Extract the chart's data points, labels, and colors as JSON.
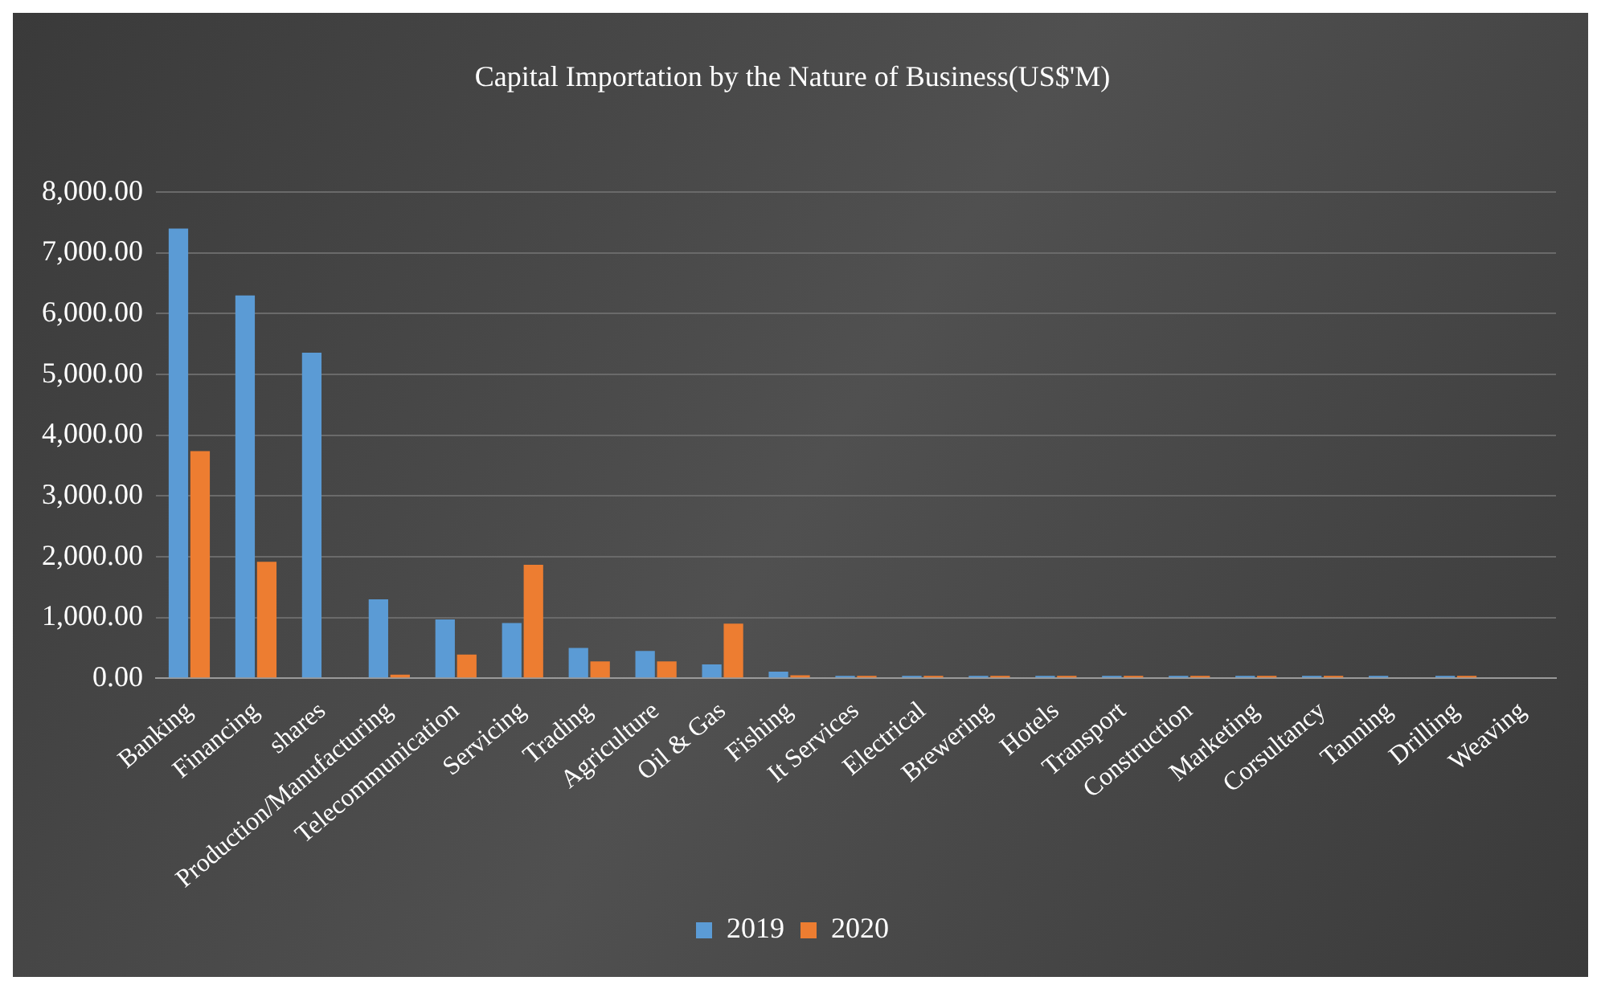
{
  "chart_data": {
    "type": "bar",
    "title": "Capital Importation by the Nature of Business(US$'M)",
    "categories": [
      "Banking",
      "Financing",
      "shares",
      "Production/Manufacturing",
      "Telecommunication",
      "Servicing",
      "Trading",
      "Agriculture",
      "Oil & Gas",
      "Fishing",
      "It Services",
      "Electrical",
      "Brewering",
      "Hotels",
      "Transport",
      "Construction",
      "Marketing",
      "Corsultancy",
      "Tanning",
      "Drilling",
      "Weaving"
    ],
    "series": [
      {
        "name": "2019",
        "color": "#5b9bd5",
        "values": [
          7400,
          6300,
          5360,
          1300,
          970,
          910,
          500,
          450,
          230,
          110,
          40,
          40,
          40,
          40,
          40,
          40,
          40,
          40,
          40,
          40,
          null
        ]
      },
      {
        "name": "2020",
        "color": "#ed7d31",
        "values": [
          3740,
          1920,
          null,
          60,
          390,
          1870,
          280,
          280,
          900,
          50,
          40,
          40,
          40,
          40,
          40,
          40,
          40,
          40,
          null,
          40,
          null
        ]
      }
    ],
    "ylim": [
      0,
      8000
    ],
    "yticks": [
      {
        "value": 0,
        "label": "0.00"
      },
      {
        "value": 1000,
        "label": "1,000.00"
      },
      {
        "value": 2000,
        "label": "2,000.00"
      },
      {
        "value": 3000,
        "label": "3,000.00"
      },
      {
        "value": 4000,
        "label": "4,000.00"
      },
      {
        "value": 5000,
        "label": "5,000.00"
      },
      {
        "value": 6000,
        "label": "6,000.00"
      },
      {
        "value": 7000,
        "label": "7,000.00"
      },
      {
        "value": 8000,
        "label": "8,000.00"
      }
    ],
    "grid": "y",
    "legend": "bottom"
  }
}
